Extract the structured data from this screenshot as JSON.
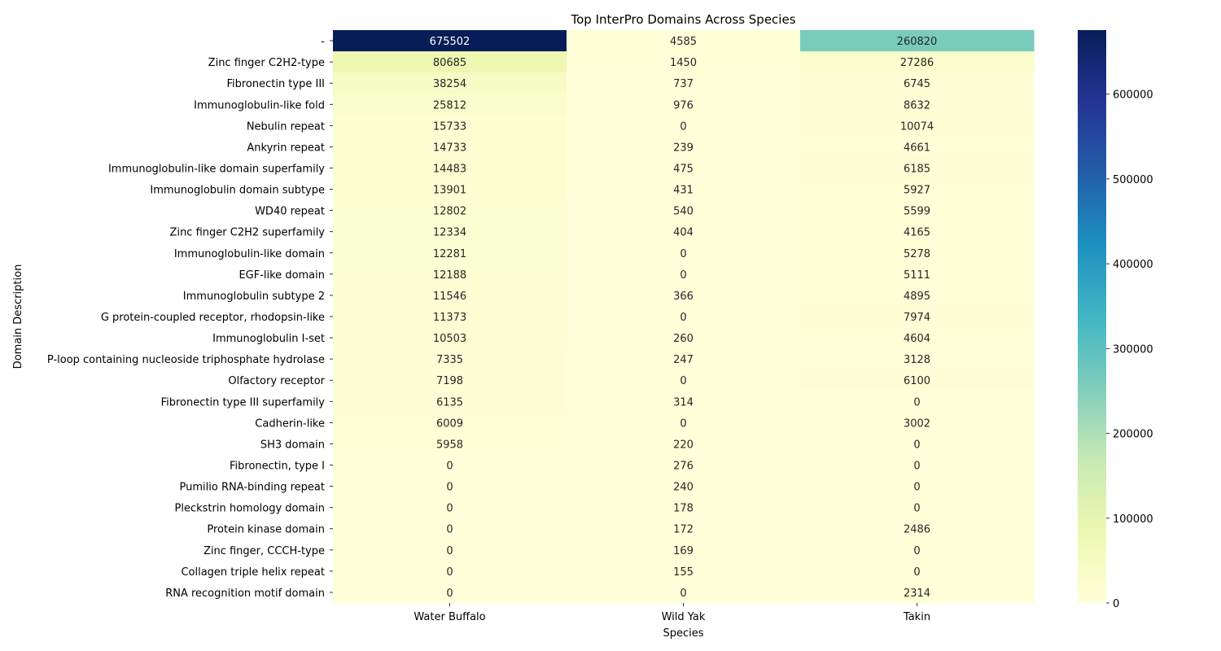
{
  "chart_data": {
    "type": "heatmap",
    "title": "Top InterPro Domains Across Species",
    "xlabel": "Species",
    "ylabel": "Domain Description",
    "columns": [
      "Water Buffalo",
      "Wild Yak",
      "Takin"
    ],
    "rows": [
      "-",
      "Zinc finger C2H2-type",
      "Fibronectin type III",
      "Immunoglobulin-like fold",
      "Nebulin repeat",
      "Ankyrin repeat",
      "Immunoglobulin-like domain superfamily",
      "Immunoglobulin domain subtype",
      "WD40 repeat",
      "Zinc finger C2H2 superfamily",
      "Immunoglobulin-like domain",
      "EGF-like domain",
      "Immunoglobulin subtype 2",
      "G protein-coupled receptor, rhodopsin-like",
      "Immunoglobulin I-set",
      "P-loop containing nucleoside triphosphate hydrolase",
      "Olfactory receptor",
      "Fibronectin type III superfamily",
      "Cadherin-like",
      "SH3 domain",
      "Fibronectin, type I",
      "Pumilio RNA-binding repeat",
      "Pleckstrin homology domain",
      "Protein kinase domain",
      "Zinc finger, CCCH-type",
      "Collagen triple helix repeat",
      "RNA recognition motif domain"
    ],
    "values": [
      [
        675502,
        4585,
        260820
      ],
      [
        80685,
        1450,
        27286
      ],
      [
        38254,
        737,
        6745
      ],
      [
        25812,
        976,
        8632
      ],
      [
        15733,
        0,
        10074
      ],
      [
        14733,
        239,
        4661
      ],
      [
        14483,
        475,
        6185
      ],
      [
        13901,
        431,
        5927
      ],
      [
        12802,
        540,
        5599
      ],
      [
        12334,
        404,
        4165
      ],
      [
        12281,
        0,
        5278
      ],
      [
        12188,
        0,
        5111
      ],
      [
        11546,
        366,
        4895
      ],
      [
        11373,
        0,
        7974
      ],
      [
        10503,
        260,
        4604
      ],
      [
        7335,
        247,
        3128
      ],
      [
        7198,
        0,
        6100
      ],
      [
        6135,
        314,
        0
      ],
      [
        6009,
        0,
        3002
      ],
      [
        5958,
        220,
        0
      ],
      [
        0,
        276,
        0
      ],
      [
        0,
        240,
        0
      ],
      [
        0,
        178,
        0
      ],
      [
        0,
        172,
        2486
      ],
      [
        0,
        169,
        0
      ],
      [
        0,
        155,
        0
      ],
      [
        0,
        0,
        2314
      ]
    ],
    "colormap": "YlGnBu",
    "colormap_stops": [
      "#ffffd9",
      "#edf8b1",
      "#c7e9b4",
      "#7fcdbb",
      "#41b6c4",
      "#1d91c0",
      "#225ea8",
      "#253494",
      "#081d58"
    ],
    "vmin": 0,
    "vmax": 675502,
    "colorbar_ticks": [
      0,
      100000,
      200000,
      300000,
      400000,
      500000,
      600000
    ],
    "grid": false,
    "legend": "colorbar-right"
  }
}
